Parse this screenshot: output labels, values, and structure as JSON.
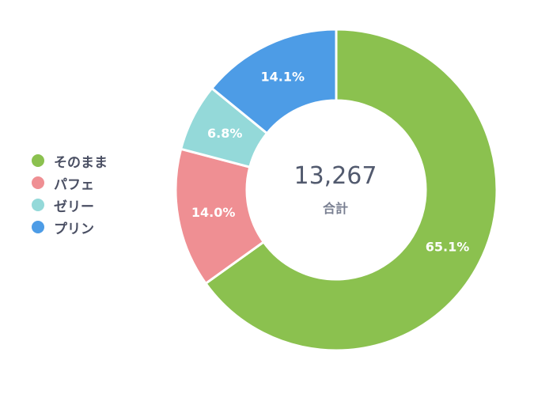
{
  "chart_data": {
    "type": "pie",
    "title": "",
    "categories": [
      "そのまま",
      "パフェ",
      "ゼリー",
      "プリン"
    ],
    "values": [
      65.1,
      14.0,
      6.8,
      14.1
    ],
    "labels": [
      "65.1%",
      "14.0%",
      "6.8%",
      "14.1%"
    ],
    "colors": [
      "#8bc14f",
      "#ef8f93",
      "#94d9d9",
      "#4d9ce6"
    ],
    "legend": "left",
    "center": {
      "value": "13,267",
      "label": "合計"
    }
  }
}
